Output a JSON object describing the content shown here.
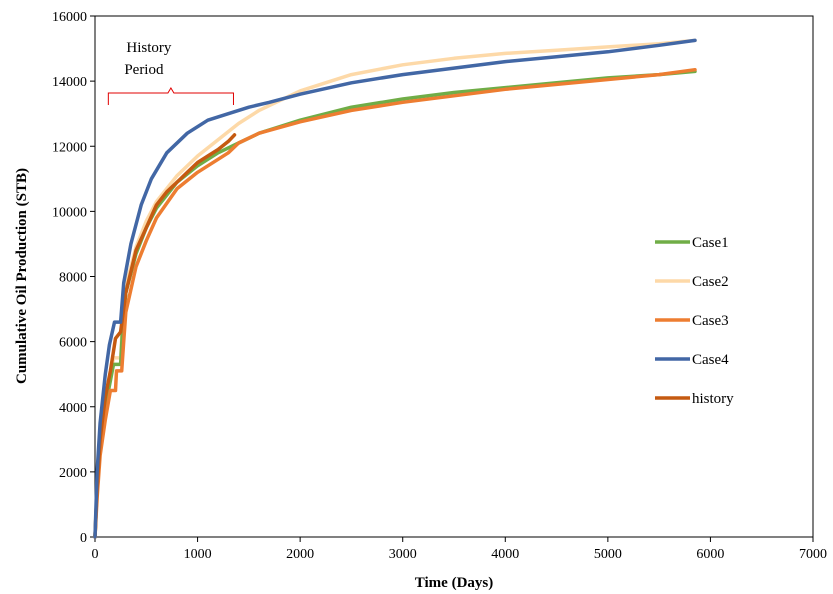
{
  "chart_data": {
    "type": "line",
    "title": "",
    "xlabel": "Time (Days)",
    "ylabel": "Cumulative Oil Production (STB)",
    "xlim": [
      0,
      7000
    ],
    "ylim": [
      0,
      16000
    ],
    "xticks": [
      0,
      1000,
      2000,
      3000,
      4000,
      5000,
      6000,
      7000
    ],
    "yticks": [
      0,
      2000,
      4000,
      6000,
      8000,
      10000,
      12000,
      14000,
      16000
    ],
    "grid": false,
    "legend_position": "right",
    "annotation": {
      "lines": [
        "History",
        "Period"
      ],
      "range": [
        130,
        1350
      ]
    },
    "series": [
      {
        "name": "Case1",
        "color": "#70ad47",
        "points": [
          [
            0,
            0
          ],
          [
            20,
            1500
          ],
          [
            50,
            2900
          ],
          [
            100,
            4000
          ],
          [
            150,
            4800
          ],
          [
            180,
            5300
          ],
          [
            250,
            5300
          ],
          [
            270,
            6500
          ],
          [
            300,
            7500
          ],
          [
            400,
            8700
          ],
          [
            500,
            9500
          ],
          [
            600,
            10100
          ],
          [
            800,
            10900
          ],
          [
            1000,
            11400
          ],
          [
            1200,
            11800
          ],
          [
            1400,
            12100
          ],
          [
            1600,
            12400
          ],
          [
            2000,
            12800
          ],
          [
            2500,
            13200
          ],
          [
            3000,
            13450
          ],
          [
            3500,
            13650
          ],
          [
            4000,
            13800
          ],
          [
            4500,
            13950
          ],
          [
            5000,
            14100
          ],
          [
            5500,
            14200
          ],
          [
            5850,
            14300
          ]
        ]
      },
      {
        "name": "Case2",
        "color": "#fdd9a8",
        "points": [
          [
            0,
            0
          ],
          [
            20,
            1600
          ],
          [
            50,
            3000
          ],
          [
            100,
            4200
          ],
          [
            150,
            5000
          ],
          [
            180,
            5500
          ],
          [
            250,
            5500
          ],
          [
            270,
            6700
          ],
          [
            300,
            7700
          ],
          [
            400,
            8900
          ],
          [
            500,
            9700
          ],
          [
            600,
            10300
          ],
          [
            800,
            11100
          ],
          [
            1000,
            11700
          ],
          [
            1200,
            12200
          ],
          [
            1400,
            12700
          ],
          [
            1600,
            13100
          ],
          [
            2000,
            13700
          ],
          [
            2500,
            14200
          ],
          [
            3000,
            14500
          ],
          [
            3500,
            14700
          ],
          [
            4000,
            14850
          ],
          [
            4500,
            14950
          ],
          [
            5000,
            15050
          ],
          [
            5500,
            15150
          ],
          [
            5850,
            15250
          ]
        ]
      },
      {
        "name": "Case3",
        "color": "#ed7d31",
        "points": [
          [
            0,
            0
          ],
          [
            20,
            1200
          ],
          [
            50,
            2500
          ],
          [
            100,
            3600
          ],
          [
            150,
            4500
          ],
          [
            200,
            4500
          ],
          [
            210,
            5100
          ],
          [
            260,
            5100
          ],
          [
            280,
            6000
          ],
          [
            300,
            6900
          ],
          [
            400,
            8300
          ],
          [
            500,
            9100
          ],
          [
            600,
            9800
          ],
          [
            800,
            10700
          ],
          [
            1000,
            11200
          ],
          [
            1200,
            11600
          ],
          [
            1300,
            11800
          ],
          [
            1400,
            12100
          ],
          [
            1600,
            12400
          ],
          [
            2000,
            12750
          ],
          [
            2500,
            13100
          ],
          [
            3000,
            13350
          ],
          [
            3500,
            13550
          ],
          [
            4000,
            13750
          ],
          [
            4500,
            13900
          ],
          [
            5000,
            14050
          ],
          [
            5500,
            14200
          ],
          [
            5850,
            14350
          ]
        ]
      },
      {
        "name": "Case4",
        "color": "#4267a5",
        "points": [
          [
            0,
            0
          ],
          [
            20,
            2000
          ],
          [
            50,
            3500
          ],
          [
            100,
            5000
          ],
          [
            140,
            5900
          ],
          [
            190,
            6600
          ],
          [
            250,
            6600
          ],
          [
            280,
            7800
          ],
          [
            350,
            9000
          ],
          [
            450,
            10200
          ],
          [
            550,
            11000
          ],
          [
            700,
            11800
          ],
          [
            900,
            12400
          ],
          [
            1100,
            12800
          ],
          [
            1300,
            13000
          ],
          [
            1500,
            13200
          ],
          [
            1700,
            13350
          ],
          [
            2000,
            13600
          ],
          [
            2500,
            13950
          ],
          [
            3000,
            14200
          ],
          [
            3500,
            14400
          ],
          [
            4000,
            14600
          ],
          [
            4500,
            14750
          ],
          [
            5000,
            14900
          ],
          [
            5500,
            15100
          ],
          [
            5850,
            15250
          ]
        ]
      },
      {
        "name": "history",
        "color": "#c55a11",
        "points": [
          [
            0,
            0
          ],
          [
            20,
            1500
          ],
          [
            50,
            3000
          ],
          [
            100,
            4300
          ],
          [
            150,
            5100
          ],
          [
            200,
            6100
          ],
          [
            250,
            6300
          ],
          [
            300,
            7500
          ],
          [
            400,
            8800
          ],
          [
            500,
            9500
          ],
          [
            600,
            10200
          ],
          [
            700,
            10600
          ],
          [
            800,
            10900
          ],
          [
            900,
            11200
          ],
          [
            1000,
            11500
          ],
          [
            1100,
            11700
          ],
          [
            1200,
            11900
          ],
          [
            1300,
            12150
          ],
          [
            1360,
            12350
          ]
        ]
      }
    ]
  }
}
